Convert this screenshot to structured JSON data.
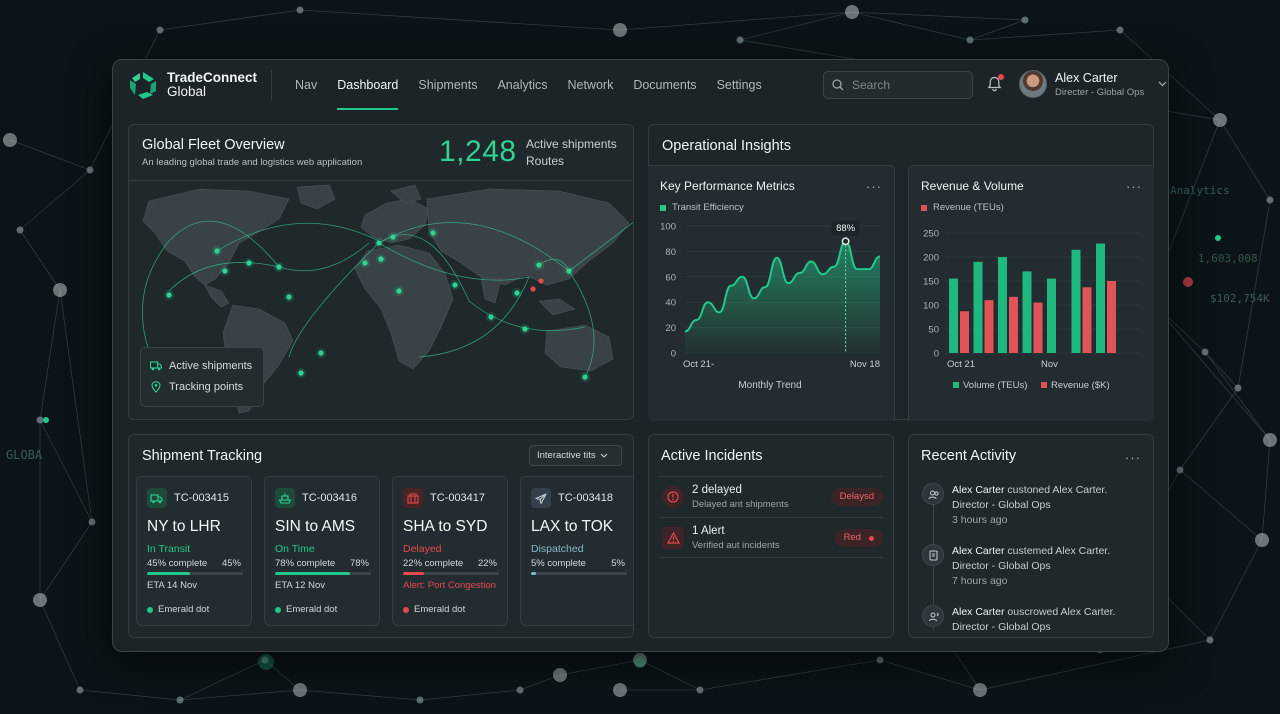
{
  "background": {
    "labels": [
      "Analytics",
      "1,603,008",
      "$102,754K",
      "GLOBA"
    ]
  },
  "app": {
    "brand_name": "TradeConnect",
    "brand_sub": "Global",
    "accent": "#22c88a",
    "danger": "#e5484d"
  },
  "nav": {
    "items": [
      {
        "label": "Nav",
        "active": false
      },
      {
        "label": "Dashboard",
        "active": true
      },
      {
        "label": "Shipments",
        "active": false
      },
      {
        "label": "Analytics",
        "active": false
      },
      {
        "label": "Network",
        "active": false
      },
      {
        "label": "Documents",
        "active": false
      },
      {
        "label": "Settings",
        "active": false
      }
    ]
  },
  "search": {
    "placeholder": "Search",
    "icon": "search-icon"
  },
  "notifications": {
    "icon": "bell-icon",
    "has_unread": true
  },
  "user": {
    "name": "Alex Carter",
    "role": "Directer - Global Ops"
  },
  "fleet": {
    "title": "Global Fleet Overview",
    "subtitle": "An leading global trade and logistics web application",
    "count": "1,248",
    "count_label_1": "Active shipments",
    "count_label_2": "Routes",
    "legend": {
      "shipments": "Active shipments",
      "tracking": "Tracking points"
    }
  },
  "insights": {
    "title": "Operational Insights",
    "kpi": {
      "title": "Key Performance Metrics",
      "legend": "Transit Efficiency",
      "menu": "···",
      "peak_label": "88%",
      "xlabel": "Monthly Trend"
    },
    "revenue": {
      "title": "Revenue & Volume",
      "legend": "Revenue (TEUs)",
      "menu": "···",
      "legend_volume": "Volume (TEUs)",
      "legend_revenue": "Revenue ($K)"
    }
  },
  "chart_data": [
    {
      "type": "area",
      "title": "Key Performance Metrics",
      "series": [
        {
          "name": "Transit Efficiency",
          "values": [
            17,
            26,
            40,
            32,
            53,
            60,
            43,
            52,
            75,
            55,
            63,
            72,
            62,
            68,
            88,
            66,
            66,
            76
          ]
        }
      ],
      "x_ticks": [
        "Oct 21-",
        "Nov 18"
      ],
      "y_ticks": [
        0,
        20,
        40,
        60,
        80,
        100
      ],
      "ylim": [
        0,
        100
      ],
      "xlabel": "Monthly Trend",
      "annotation": "88%",
      "color": "#22c88a"
    },
    {
      "type": "bar",
      "title": "Revenue & Volume",
      "categories": [
        "1",
        "2",
        "3",
        "4",
        "5",
        "6",
        "7",
        "8"
      ],
      "x_ticks": [
        "Oct 21",
        "Nov"
      ],
      "series": [
        {
          "name": "Volume (TEUs)",
          "values": [
            155,
            190,
            200,
            170,
            155,
            215,
            228,
            0
          ],
          "color": "#1fb97f"
        },
        {
          "name": "Revenue ($K)",
          "values": [
            87,
            110,
            117,
            105,
            0,
            137,
            150,
            0
          ],
          "color": "#e05458"
        }
      ],
      "y_ticks": [
        0,
        50,
        100,
        150,
        200,
        250
      ],
      "ylim": [
        0,
        250
      ],
      "grid": true
    }
  ],
  "tracking": {
    "title": "Shipment Tracking",
    "dropdown": "Interactive tits",
    "shipments": [
      {
        "id": "TC-003415",
        "route": "NY to LHR",
        "status": "In Transit",
        "status_color": "#22c88a",
        "pct_label": "45% complete",
        "pct": "45%",
        "progress": 0.45,
        "eta": "ETA 14 Nov",
        "dot": "Emerald dot",
        "dot_color": "#22c88a",
        "icon": "truck-icon",
        "icon_bg": "#1d4a3a",
        "icon_color": "#2fd394"
      },
      {
        "id": "TC-003416",
        "route": "SIN to AMS",
        "status": "On Time",
        "status_color": "#22c88a",
        "pct_label": "78% complete",
        "pct": "78%",
        "progress": 0.78,
        "eta": "ETA 12 Nov",
        "dot": "Emerald dot",
        "dot_color": "#22c88a",
        "icon": "ship-icon",
        "icon_bg": "#1d4a3a",
        "icon_color": "#2fd394"
      },
      {
        "id": "TC-003417",
        "route": "SHA to SYD",
        "status": "Delayed",
        "status_color": "#e5484d",
        "pct_label": "22% complete",
        "pct": "22%",
        "progress": 0.22,
        "eta": "Alert: Port Congestion",
        "eta_color": "#e5484d",
        "dot": "Emerald dot",
        "dot_color": "#e5484d",
        "icon": "container-icon",
        "icon_bg": "#4a2326",
        "icon_color": "#e5484d"
      },
      {
        "id": "TC-003418",
        "route": "LAX to TOK",
        "status": "Dispatched",
        "status_color": "#86b9c9",
        "pct_label": "5% complete",
        "pct": "5%",
        "progress": 0.05,
        "icon": "plane-icon",
        "icon_bg": "#33404a",
        "icon_color": "#c2ccd0"
      }
    ]
  },
  "incidents": {
    "title": "Active Incidents",
    "items": [
      {
        "title": "2 delayed",
        "sub": "Delayed ant shipments",
        "badge": "Delaysd",
        "icon": "clock-alert-icon"
      },
      {
        "title": "1 Alert",
        "sub": "Verified aut incidents",
        "badge": "Red",
        "icon": "warning-icon"
      }
    ]
  },
  "activity": {
    "title": "Recent Activity",
    "menu": "···",
    "items": [
      {
        "actor": "Alex Carter",
        "text": " custoned Alex Carter.",
        "role": "Director - Global Ops",
        "time": "3 hours ago",
        "icon": "users-icon"
      },
      {
        "actor": "Alex Carter",
        "text": " custemed Alex Carter.",
        "role": "Director - Global Ops",
        "time": "7 hours ago",
        "icon": "document-icon"
      },
      {
        "actor": "Alex Carter",
        "text": " ouscrowed Alex Carter.",
        "role": "Director - Global Ops",
        "time": "",
        "icon": "user-switch-icon"
      }
    ]
  }
}
